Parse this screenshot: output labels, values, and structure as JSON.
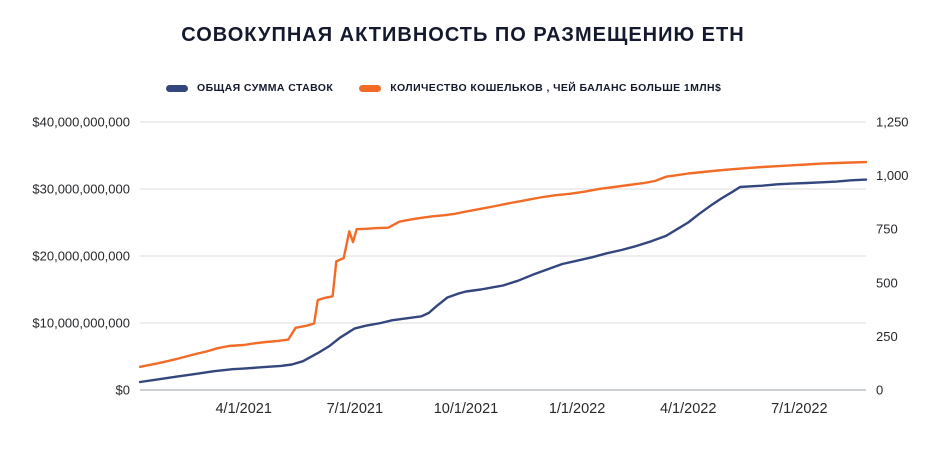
{
  "title": "СОВОКУПНАЯ АКТИВНОСТЬ ПО РАЗМЕЩЕНИЮ ETH",
  "legend": {
    "items": [
      {
        "label": "ОБЩАЯ СУММА СТАВОК",
        "color": "#33477e"
      },
      {
        "label": "КОЛИЧЕСТВО КОШЕЛЬКОВ , ЧЕЙ БАЛАНС БОЛЬШЕ 1МЛН$",
        "color": "#f26b27"
      }
    ]
  },
  "chart_data": {
    "type": "line",
    "title": "СОВОКУПНАЯ АКТИВНОСТЬ ПО РАЗМЕЩЕНИЮ ETH",
    "legend_position": "top",
    "grid": "horizontal",
    "x_axis": {
      "unit": "months since 2021-01-01",
      "range": [
        0.2,
        19.8
      ],
      "ticks": [
        {
          "value": 3,
          "label": "4/1/2021"
        },
        {
          "value": 6,
          "label": "7/1/2021"
        },
        {
          "value": 9,
          "label": "10/1/2021"
        },
        {
          "value": 12,
          "label": "1/1/2022"
        },
        {
          "value": 15,
          "label": "4/1/2022"
        },
        {
          "value": 18,
          "label": "7/1/2022"
        }
      ]
    },
    "y_left": {
      "unit": "USD billions",
      "range": [
        0,
        40
      ],
      "ticks": [
        {
          "value": 0,
          "label": "$0"
        },
        {
          "value": 10,
          "label": "$10,000,000,000"
        },
        {
          "value": 20,
          "label": "$20,000,000,000"
        },
        {
          "value": 30,
          "label": "$30,000,000,000"
        },
        {
          "value": 40,
          "label": "$40,000,000,000"
        }
      ]
    },
    "y_right": {
      "unit": "wallets",
      "range": [
        0,
        1250
      ],
      "ticks": [
        {
          "value": 0,
          "label": "0"
        },
        {
          "value": 250,
          "label": "250"
        },
        {
          "value": 500,
          "label": "500"
        },
        {
          "value": 750,
          "label": "750"
        },
        {
          "value": 1000,
          "label": "1,000"
        },
        {
          "value": 1250,
          "label": "1,250"
        }
      ]
    },
    "series": [
      {
        "name": "ОБЩАЯ СУММА СТАВОК",
        "axis": "left",
        "color": "#33477e",
        "points": [
          [
            0.2,
            1.2
          ],
          [
            0.7,
            1.6
          ],
          [
            1.2,
            2.0
          ],
          [
            1.7,
            2.4
          ],
          [
            2.2,
            2.8
          ],
          [
            2.7,
            3.1
          ],
          [
            3.0,
            3.2
          ],
          [
            3.5,
            3.4
          ],
          [
            4.0,
            3.6
          ],
          [
            4.3,
            3.8
          ],
          [
            4.6,
            4.3
          ],
          [
            5.0,
            5.5
          ],
          [
            5.3,
            6.5
          ],
          [
            5.6,
            7.8
          ],
          [
            6.0,
            9.2
          ],
          [
            6.3,
            9.6
          ],
          [
            6.7,
            10.0
          ],
          [
            7.0,
            10.4
          ],
          [
            7.4,
            10.7
          ],
          [
            7.8,
            11.0
          ],
          [
            8.0,
            11.5
          ],
          [
            8.2,
            12.5
          ],
          [
            8.5,
            13.8
          ],
          [
            8.8,
            14.4
          ],
          [
            9.0,
            14.7
          ],
          [
            9.4,
            15.0
          ],
          [
            9.8,
            15.4
          ],
          [
            10.0,
            15.6
          ],
          [
            10.4,
            16.3
          ],
          [
            10.8,
            17.2
          ],
          [
            11.2,
            18.0
          ],
          [
            11.6,
            18.8
          ],
          [
            12.0,
            19.3
          ],
          [
            12.4,
            19.8
          ],
          [
            12.8,
            20.4
          ],
          [
            13.2,
            20.9
          ],
          [
            13.6,
            21.5
          ],
          [
            14.0,
            22.2
          ],
          [
            14.4,
            23.0
          ],
          [
            14.7,
            24.0
          ],
          [
            15.0,
            25.0
          ],
          [
            15.3,
            26.3
          ],
          [
            15.6,
            27.5
          ],
          [
            15.9,
            28.6
          ],
          [
            16.2,
            29.6
          ],
          [
            16.4,
            30.3
          ],
          [
            16.7,
            30.4
          ],
          [
            17.0,
            30.5
          ],
          [
            17.4,
            30.7
          ],
          [
            17.8,
            30.8
          ],
          [
            18.2,
            30.9
          ],
          [
            18.6,
            31.0
          ],
          [
            19.0,
            31.1
          ],
          [
            19.4,
            31.3
          ],
          [
            19.8,
            31.4
          ]
        ]
      },
      {
        "name": "КОЛИЧЕСТВО КОШЕЛЬКОВ , ЧЕЙ БАЛАНС БОЛЬШЕ 1МЛН$",
        "axis": "right",
        "color": "#f26b27",
        "points": [
          [
            0.2,
            108
          ],
          [
            0.7,
            125
          ],
          [
            1.2,
            145
          ],
          [
            1.7,
            168
          ],
          [
            2.0,
            180
          ],
          [
            2.3,
            195
          ],
          [
            2.6,
            205
          ],
          [
            3.0,
            210
          ],
          [
            3.3,
            218
          ],
          [
            3.6,
            224
          ],
          [
            3.9,
            228
          ],
          [
            4.2,
            235
          ],
          [
            4.4,
            290
          ],
          [
            4.7,
            300
          ],
          [
            4.9,
            310
          ],
          [
            5.0,
            420
          ],
          [
            5.2,
            430
          ],
          [
            5.4,
            437
          ],
          [
            5.5,
            600
          ],
          [
            5.7,
            615
          ],
          [
            5.85,
            740
          ],
          [
            5.95,
            690
          ],
          [
            6.05,
            750
          ],
          [
            6.3,
            752
          ],
          [
            6.6,
            755
          ],
          [
            6.9,
            757
          ],
          [
            7.2,
            785
          ],
          [
            7.5,
            795
          ],
          [
            7.8,
            803
          ],
          [
            8.1,
            810
          ],
          [
            8.4,
            815
          ],
          [
            8.7,
            822
          ],
          [
            9.0,
            832
          ],
          [
            9.4,
            845
          ],
          [
            9.8,
            858
          ],
          [
            10.2,
            872
          ],
          [
            10.6,
            885
          ],
          [
            11.0,
            898
          ],
          [
            11.4,
            908
          ],
          [
            11.8,
            915
          ],
          [
            12.2,
            925
          ],
          [
            12.6,
            938
          ],
          [
            13.0,
            947
          ],
          [
            13.4,
            956
          ],
          [
            13.8,
            965
          ],
          [
            14.1,
            975
          ],
          [
            14.4,
            995
          ],
          [
            14.7,
            1002
          ],
          [
            15.0,
            1010
          ],
          [
            15.4,
            1017
          ],
          [
            15.8,
            1024
          ],
          [
            16.2,
            1030
          ],
          [
            16.6,
            1035
          ],
          [
            17.0,
            1040
          ],
          [
            17.4,
            1044
          ],
          [
            17.8,
            1048
          ],
          [
            18.2,
            1052
          ],
          [
            18.6,
            1056
          ],
          [
            19.0,
            1059
          ],
          [
            19.4,
            1061
          ],
          [
            19.8,
            1063
          ]
        ]
      }
    ]
  }
}
